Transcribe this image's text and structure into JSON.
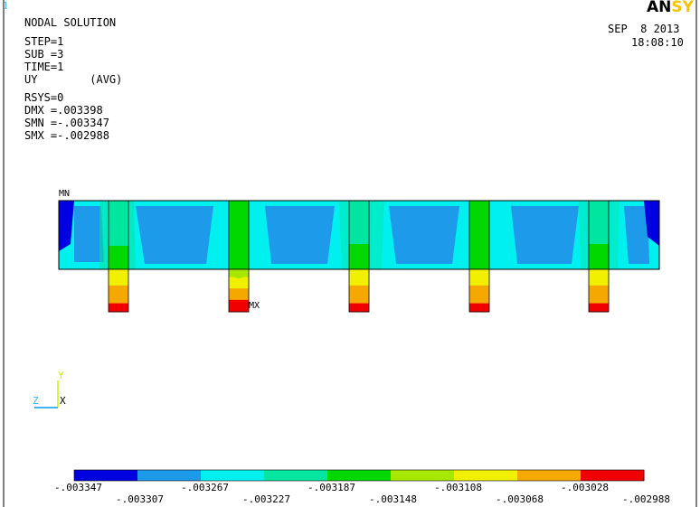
{
  "window": {
    "number": "1"
  },
  "logo": {
    "text_dark": "AN",
    "text_accent": "SY"
  },
  "header": {
    "lines": [
      "NODAL SOLUTION",
      "STEP=1",
      "SUB =3",
      "TIME=1",
      "UY        (AVG)",
      "RSYS=0",
      "DMX =.003398",
      "SMN =-.003347",
      "SMX =-.002988"
    ]
  },
  "datetime": {
    "date": "SEP  8 2013",
    "time": "18:08:10"
  },
  "labels": {
    "min_marker": "MN",
    "max_marker": "MX"
  },
  "triad": {
    "y": "Y",
    "z": "Z",
    "x": "X"
  },
  "legend": {
    "colors": [
      "#0000e0",
      "#1e9aea",
      "#00f0f0",
      "#00e6a0",
      "#00d800",
      "#a8e800",
      "#f0f000",
      "#f5a800",
      "#f00000"
    ],
    "labels_top": [
      "-.003347",
      "-.003267",
      "-.003187",
      "-.003108",
      "-.003028"
    ],
    "labels_bottom": [
      "-.003307",
      "-.003227",
      "-.003148",
      "-.003068",
      "-.002988"
    ]
  },
  "colors": {
    "background": "#ffffff",
    "frame": "#000000",
    "window_number": "#3fb6f0",
    "triad": "#c8f000"
  }
}
